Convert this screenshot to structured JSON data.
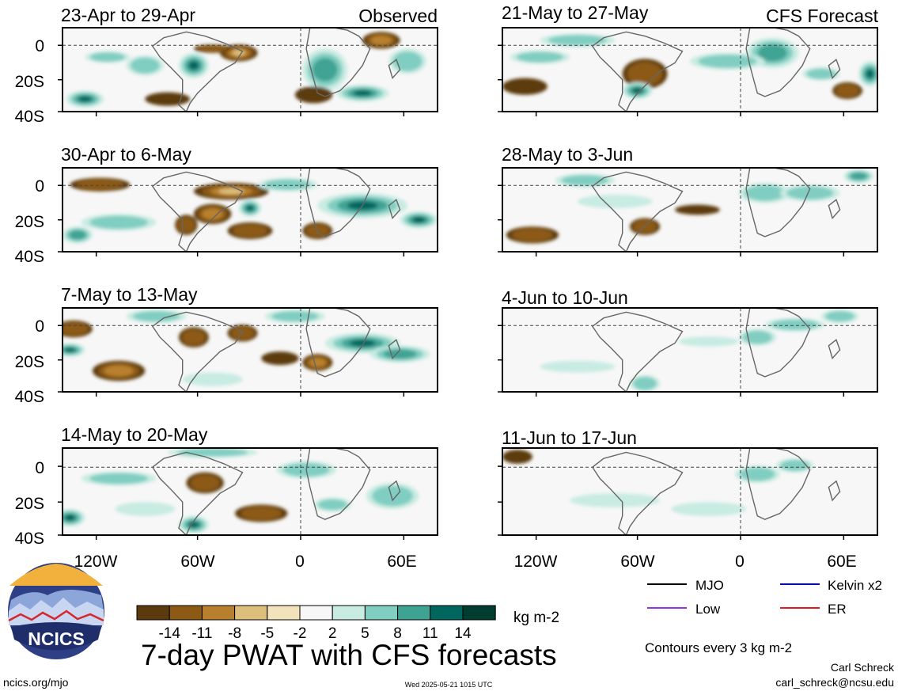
{
  "header": {
    "observed_label": "Observed",
    "forecast_label": "CFS Forecast"
  },
  "panels": {
    "observed": [
      {
        "title": "23-Apr to 29-Apr"
      },
      {
        "title": "30-Apr to 6-May"
      },
      {
        "title": "7-May to 13-May"
      },
      {
        "title": "14-May to 20-May"
      }
    ],
    "forecast": [
      {
        "title": "21-May to 27-May"
      },
      {
        "title": "28-May to 3-Jun"
      },
      {
        "title": "4-Jun to 10-Jun"
      },
      {
        "title": "11-Jun to 17-Jun"
      }
    ]
  },
  "axes": {
    "lat_ticks": [
      "0",
      "20S",
      "40S"
    ],
    "lon_ticks": [
      "120W",
      "60W",
      "0",
      "60E"
    ]
  },
  "legend": {
    "items": [
      {
        "label": "MJO",
        "color": "#000000"
      },
      {
        "label": "Kelvin x2",
        "color": "#0000ff"
      },
      {
        "label": "Low",
        "color": "#9b30d9"
      },
      {
        "label": "ER",
        "color": "#e41a1c"
      }
    ],
    "contours_note": "Contours every 3 kg m-2"
  },
  "colorbar": {
    "colors": [
      "#5b3a0e",
      "#8c5a14",
      "#b8802e",
      "#dbbf7a",
      "#f3e3bb",
      "#f7f7f7",
      "#c8ebe2",
      "#80cdc1",
      "#3fa394",
      "#01665e",
      "#003c30"
    ],
    "labels": [
      "-14",
      "-11",
      "-8",
      "-5",
      "-2",
      "2",
      "5",
      "8",
      "11",
      "14"
    ],
    "units": "kg m-2"
  },
  "footer": {
    "main_title": "7-day PWAT with CFS forecasts",
    "logo_text": "NCICS",
    "site": "ncics.org/mjo",
    "timestamp": "Wed 2025-05-21 1015 UTC",
    "author": "Carl Schreck",
    "email": "carl_schreck@ncsu.edu"
  },
  "chart_data": {
    "type": "heatmap",
    "title": "7-day PWAT with CFS forecasts",
    "units": "kg m-2",
    "color_levels": [
      -14,
      -11,
      -8,
      -5,
      -2,
      2,
      5,
      8,
      11,
      14
    ],
    "lon_range": [
      "150W",
      "80E"
    ],
    "lat_range": [
      "10N",
      "40S"
    ],
    "observed_periods": [
      "23-Apr to 29-Apr",
      "30-Apr to 6-May",
      "7-May to 13-May",
      "14-May to 20-May"
    ],
    "forecast_periods": [
      "21-May to 27-May",
      "28-May to 3-Jun",
      "4-Jun to 10-Jun",
      "11-Jun to 17-Jun"
    ],
    "contour_interval": 3
  }
}
